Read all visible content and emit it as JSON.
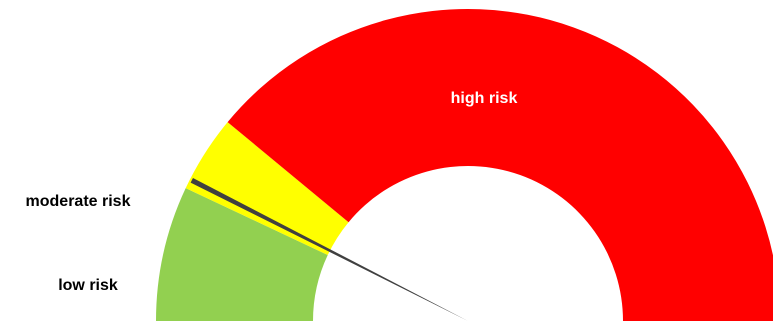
{
  "chart_data": {
    "type": "pie",
    "subtype": "gauge",
    "segments": [
      {
        "label": "low risk",
        "value": 14,
        "color": "#92d050"
      },
      {
        "label": "moderate risk",
        "value": 8,
        "color": "#ffff00"
      },
      {
        "label": "high risk",
        "value": 78,
        "color": "#ff0000"
      }
    ],
    "range": [
      0,
      100
    ],
    "needle": {
      "value": 15,
      "color": "#404040"
    }
  }
}
